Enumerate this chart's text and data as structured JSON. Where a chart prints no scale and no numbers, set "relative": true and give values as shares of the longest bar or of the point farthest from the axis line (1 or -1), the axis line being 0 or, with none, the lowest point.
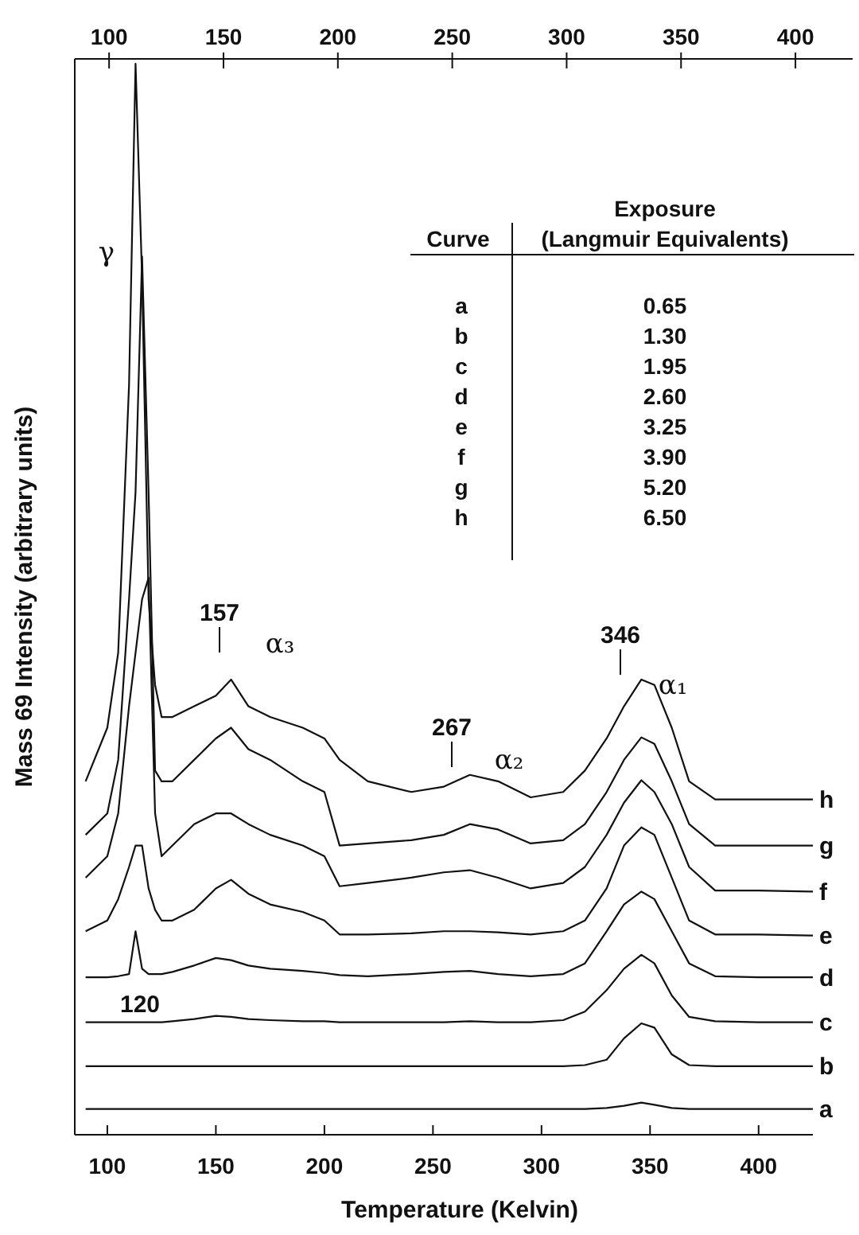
{
  "chart_data": {
    "type": "line",
    "relative": true,
    "xlabel": "Temperature (Kelvin)",
    "ylabel": "Mass 69 Intensity (arbitrary units)",
    "xlim": [
      85,
      425
    ],
    "xticks": [
      100,
      150,
      200,
      250,
      300,
      350,
      400
    ],
    "x2lim": [
      85,
      425
    ],
    "x2ticks": [
      100,
      150,
      200,
      250,
      300,
      350,
      400
    ],
    "x": [
      90,
      100,
      105,
      110,
      113,
      116,
      119,
      122,
      125,
      130,
      140,
      150,
      157,
      165,
      175,
      190,
      200,
      207,
      220,
      240,
      255,
      267,
      280,
      295,
      310,
      320,
      330,
      338,
      346,
      352,
      360,
      368,
      380,
      400,
      425
    ],
    "series": [
      {
        "name": "a",
        "color": "#111111",
        "values": [
          0.024,
          0.024,
          0.024,
          0.024,
          0.024,
          0.024,
          0.024,
          0.024,
          0.024,
          0.024,
          0.024,
          0.024,
          0.024,
          0.024,
          0.024,
          0.024,
          0.024,
          0.024,
          0.024,
          0.024,
          0.024,
          0.024,
          0.024,
          0.024,
          0.024,
          0.024,
          0.025,
          0.027,
          0.03,
          0.028,
          0.025,
          0.024,
          0.024,
          0.024,
          0.024
        ]
      },
      {
        "name": "b",
        "color": "#111111",
        "values": [
          0.064,
          0.064,
          0.064,
          0.064,
          0.064,
          0.064,
          0.064,
          0.064,
          0.064,
          0.064,
          0.064,
          0.064,
          0.064,
          0.064,
          0.064,
          0.064,
          0.064,
          0.064,
          0.064,
          0.064,
          0.064,
          0.064,
          0.064,
          0.064,
          0.064,
          0.065,
          0.07,
          0.09,
          0.104,
          0.1,
          0.075,
          0.065,
          0.064,
          0.064,
          0.064
        ]
      },
      {
        "name": "c",
        "color": "#111111",
        "values": [
          0.105,
          0.105,
          0.105,
          0.105,
          0.105,
          0.105,
          0.105,
          0.105,
          0.105,
          0.106,
          0.108,
          0.111,
          0.11,
          0.108,
          0.107,
          0.106,
          0.106,
          0.105,
          0.105,
          0.105,
          0.105,
          0.106,
          0.105,
          0.105,
          0.107,
          0.115,
          0.135,
          0.155,
          0.168,
          0.16,
          0.13,
          0.11,
          0.106,
          0.105,
          0.105
        ]
      },
      {
        "name": "d",
        "color": "#111111",
        "values": [
          0.147,
          0.147,
          0.148,
          0.15,
          0.19,
          0.155,
          0.15,
          0.15,
          0.15,
          0.152,
          0.158,
          0.165,
          0.163,
          0.158,
          0.155,
          0.153,
          0.151,
          0.149,
          0.148,
          0.15,
          0.152,
          0.153,
          0.15,
          0.148,
          0.15,
          0.16,
          0.19,
          0.215,
          0.227,
          0.22,
          0.19,
          0.16,
          0.148,
          0.147,
          0.147
        ]
      },
      {
        "name": "e",
        "color": "#111111",
        "values": [
          0.19,
          0.2,
          0.22,
          0.25,
          0.27,
          0.27,
          0.23,
          0.21,
          0.2,
          0.2,
          0.21,
          0.23,
          0.238,
          0.225,
          0.215,
          0.208,
          0.2,
          0.187,
          0.187,
          0.188,
          0.19,
          0.19,
          0.189,
          0.187,
          0.19,
          0.2,
          0.23,
          0.27,
          0.287,
          0.28,
          0.24,
          0.2,
          0.187,
          0.187,
          0.186
        ]
      },
      {
        "name": "f",
        "color": "#111111",
        "values": [
          0.24,
          0.26,
          0.3,
          0.4,
          0.45,
          0.5,
          0.52,
          0.3,
          0.26,
          0.27,
          0.29,
          0.3,
          0.3,
          0.29,
          0.28,
          0.27,
          0.26,
          0.232,
          0.235,
          0.24,
          0.245,
          0.247,
          0.24,
          0.23,
          0.235,
          0.25,
          0.28,
          0.31,
          0.331,
          0.32,
          0.29,
          0.25,
          0.228,
          0.228,
          0.227
        ]
      },
      {
        "name": "g",
        "color": "#111111",
        "values": [
          0.28,
          0.3,
          0.35,
          0.5,
          0.6,
          0.82,
          0.6,
          0.34,
          0.33,
          0.33,
          0.35,
          0.37,
          0.38,
          0.36,
          0.35,
          0.33,
          0.32,
          0.27,
          0.272,
          0.275,
          0.28,
          0.29,
          0.285,
          0.272,
          0.275,
          0.29,
          0.32,
          0.35,
          0.371,
          0.365,
          0.33,
          0.29,
          0.27,
          0.27,
          0.27
        ]
      },
      {
        "name": "h",
        "color": "#111111",
        "values": [
          0.33,
          0.38,
          0.45,
          0.7,
          1.0,
          0.8,
          0.5,
          0.42,
          0.39,
          0.39,
          0.4,
          0.41,
          0.425,
          0.4,
          0.39,
          0.38,
          0.37,
          0.35,
          0.33,
          0.32,
          0.325,
          0.336,
          0.33,
          0.315,
          0.32,
          0.34,
          0.37,
          0.4,
          0.425,
          0.42,
          0.38,
          0.33,
          0.313,
          0.313,
          0.313
        ]
      }
    ],
    "legend": false,
    "grid": false,
    "marker": "none",
    "line_style": "solid",
    "annotations": [
      "157",
      "α₃",
      "267",
      "α₂",
      "346",
      "α₁",
      "120",
      "γ",
      "Curve",
      "Exposure",
      "(Langmuir Equivalents)",
      "0.65",
      "1.30",
      "1.95",
      "2.60",
      "3.25",
      "3.90",
      "5.20",
      "6.50"
    ]
  }
}
